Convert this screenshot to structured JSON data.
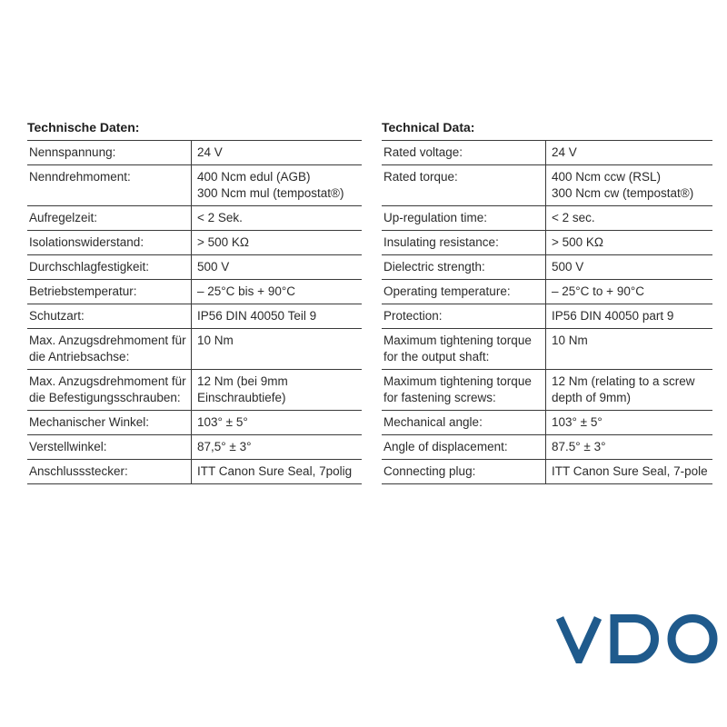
{
  "german": {
    "heading": "Technische Daten:",
    "rows": [
      {
        "key": [
          "Nennspannung:"
        ],
        "value": [
          "24 V"
        ]
      },
      {
        "key": [
          "Nenndrehmoment:"
        ],
        "value": [
          "400 Ncm edul (AGB)",
          "300 Ncm mul (tempostat®)"
        ]
      },
      {
        "key": [
          "Aufregelzeit:"
        ],
        "value": [
          "< 2 Sek."
        ]
      },
      {
        "key": [
          "Isolationswiderstand:"
        ],
        "value": [
          "> 500 KΩ"
        ]
      },
      {
        "key": [
          "Durchschlagfestigkeit:"
        ],
        "value": [
          "500 V"
        ]
      },
      {
        "key": [
          "Betriebstemperatur:"
        ],
        "value": [
          "– 25°C bis + 90°C"
        ]
      },
      {
        "key": [
          "Schutzart:"
        ],
        "value": [
          "IP56 DIN 40050 Teil 9"
        ]
      },
      {
        "key": [
          "Max. Anzugsdrehmoment für",
          "die Antriebsachse:"
        ],
        "value": [
          "10 Nm"
        ]
      },
      {
        "key": [
          "Max. Anzugsdrehmoment für",
          "die Befestigungsschrauben:"
        ],
        "value": [
          "12 Nm (bei 9mm",
          "Einschraubtiefe)"
        ]
      },
      {
        "key": [
          "Mechanischer Winkel:"
        ],
        "value": [
          "103° ± 5°"
        ]
      },
      {
        "key": [
          "Verstellwinkel:"
        ],
        "value": [
          "87,5° ± 3°"
        ]
      },
      {
        "key": [
          "Anschlussstecker:"
        ],
        "value": [
          "ITT Canon Sure Seal, 7polig"
        ]
      }
    ]
  },
  "english": {
    "heading": "Technical Data:",
    "rows": [
      {
        "key": [
          "Rated voltage:"
        ],
        "value": [
          "24 V"
        ]
      },
      {
        "key": [
          "Rated torque:"
        ],
        "value": [
          "400 Ncm ccw (RSL)",
          "300 Ncm cw (tempostat®)"
        ]
      },
      {
        "key": [
          "Up-regulation time:"
        ],
        "value": [
          "< 2 sec."
        ]
      },
      {
        "key": [
          "Insulating resistance:"
        ],
        "value": [
          "> 500 KΩ"
        ]
      },
      {
        "key": [
          "Dielectric strength:"
        ],
        "value": [
          "500 V"
        ]
      },
      {
        "key": [
          "Operating temperature:"
        ],
        "value": [
          "– 25°C to + 90°C"
        ]
      },
      {
        "key": [
          "Protection:"
        ],
        "value": [
          "IP56 DIN 40050 part 9"
        ]
      },
      {
        "key": [
          "Maximum tightening torque",
          "for the output shaft:"
        ],
        "value": [
          "10 Nm"
        ]
      },
      {
        "key": [
          "Maximum tightening torque",
          "for fastening screws:"
        ],
        "value": [
          "12 Nm (relating to a screw",
          "depth of 9mm)"
        ]
      },
      {
        "key": [
          "Mechanical angle:"
        ],
        "value": [
          "103° ± 5°"
        ]
      },
      {
        "key": [
          "Angle of displacement:"
        ],
        "value": [
          "87.5° ± 3°"
        ]
      },
      {
        "key": [
          "Connecting plug:"
        ],
        "value": [
          "ITT Canon Sure Seal, 7-pole"
        ]
      }
    ]
  },
  "logo": {
    "text": "VDO",
    "color": "#1f5a8c"
  }
}
